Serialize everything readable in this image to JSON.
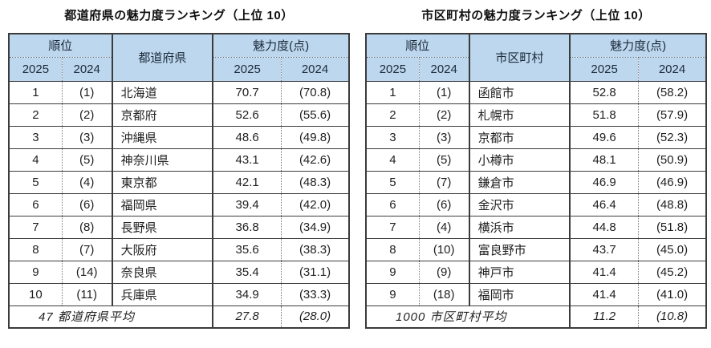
{
  "style": {
    "header_bg": "#BDD7EE",
    "border_color": "#3b3b3b",
    "text_color": "#1f1f1f"
  },
  "tables": [
    {
      "title": "都道府県の魅力度ランキング（上位 10）",
      "header": {
        "rank_group": "順位",
        "name": "都道府県",
        "score_group": "魅力度(点)",
        "col_2025": "2025",
        "col_2024": "2024"
      },
      "rows": [
        [
          "1",
          "(1)",
          "北海道",
          "70.7",
          "(70.8)"
        ],
        [
          "2",
          "(2)",
          "京都府",
          "52.6",
          "(55.6)"
        ],
        [
          "3",
          "(3)",
          "沖縄県",
          "48.6",
          "(49.8)"
        ],
        [
          "4",
          "(5)",
          "神奈川県",
          "43.1",
          "(42.6)"
        ],
        [
          "5",
          "(4)",
          "東京都",
          "42.1",
          "(48.3)"
        ],
        [
          "6",
          "(6)",
          "福岡県",
          "39.4",
          "(42.0)"
        ],
        [
          "7",
          "(8)",
          "長野県",
          "36.8",
          "(34.9)"
        ],
        [
          "8",
          "(7)",
          "大阪府",
          "35.6",
          "(38.3)"
        ],
        [
          "9",
          "(14)",
          "奈良県",
          "35.4",
          "(31.1)"
        ],
        [
          "10",
          "(11)",
          "兵庫県",
          "34.9",
          "(33.3)"
        ]
      ],
      "footer": [
        "47 都道府県平均",
        "27.8",
        "(28.0)"
      ]
    },
    {
      "title": "市区町村の魅力度ランキング（上位 10）",
      "header": {
        "rank_group": "順位",
        "name": "市区町村",
        "score_group": "魅力度(点)",
        "col_2025": "2025",
        "col_2024": "2024"
      },
      "rows": [
        [
          "1",
          "(1)",
          "函館市",
          "52.8",
          "(58.2)"
        ],
        [
          "2",
          "(2)",
          "札幌市",
          "51.8",
          "(57.9)"
        ],
        [
          "3",
          "(3)",
          "京都市",
          "49.6",
          "(52.3)"
        ],
        [
          "4",
          "(5)",
          "小樽市",
          "48.1",
          "(50.9)"
        ],
        [
          "5",
          "(7)",
          "鎌倉市",
          "46.9",
          "(46.9)"
        ],
        [
          "6",
          "(6)",
          "金沢市",
          "46.4",
          "(48.8)"
        ],
        [
          "7",
          "(4)",
          "横浜市",
          "44.8",
          "(51.8)"
        ],
        [
          "8",
          "(10)",
          "富良野市",
          "43.7",
          "(45.0)"
        ],
        [
          "9",
          "(9)",
          "神戸市",
          "41.4",
          "(45.2)"
        ],
        [
          "9",
          "(18)",
          "福岡市",
          "41.4",
          "(41.0)"
        ]
      ],
      "footer": [
        "1000 市区町村平均",
        "11.2",
        "(10.8)"
      ]
    }
  ]
}
